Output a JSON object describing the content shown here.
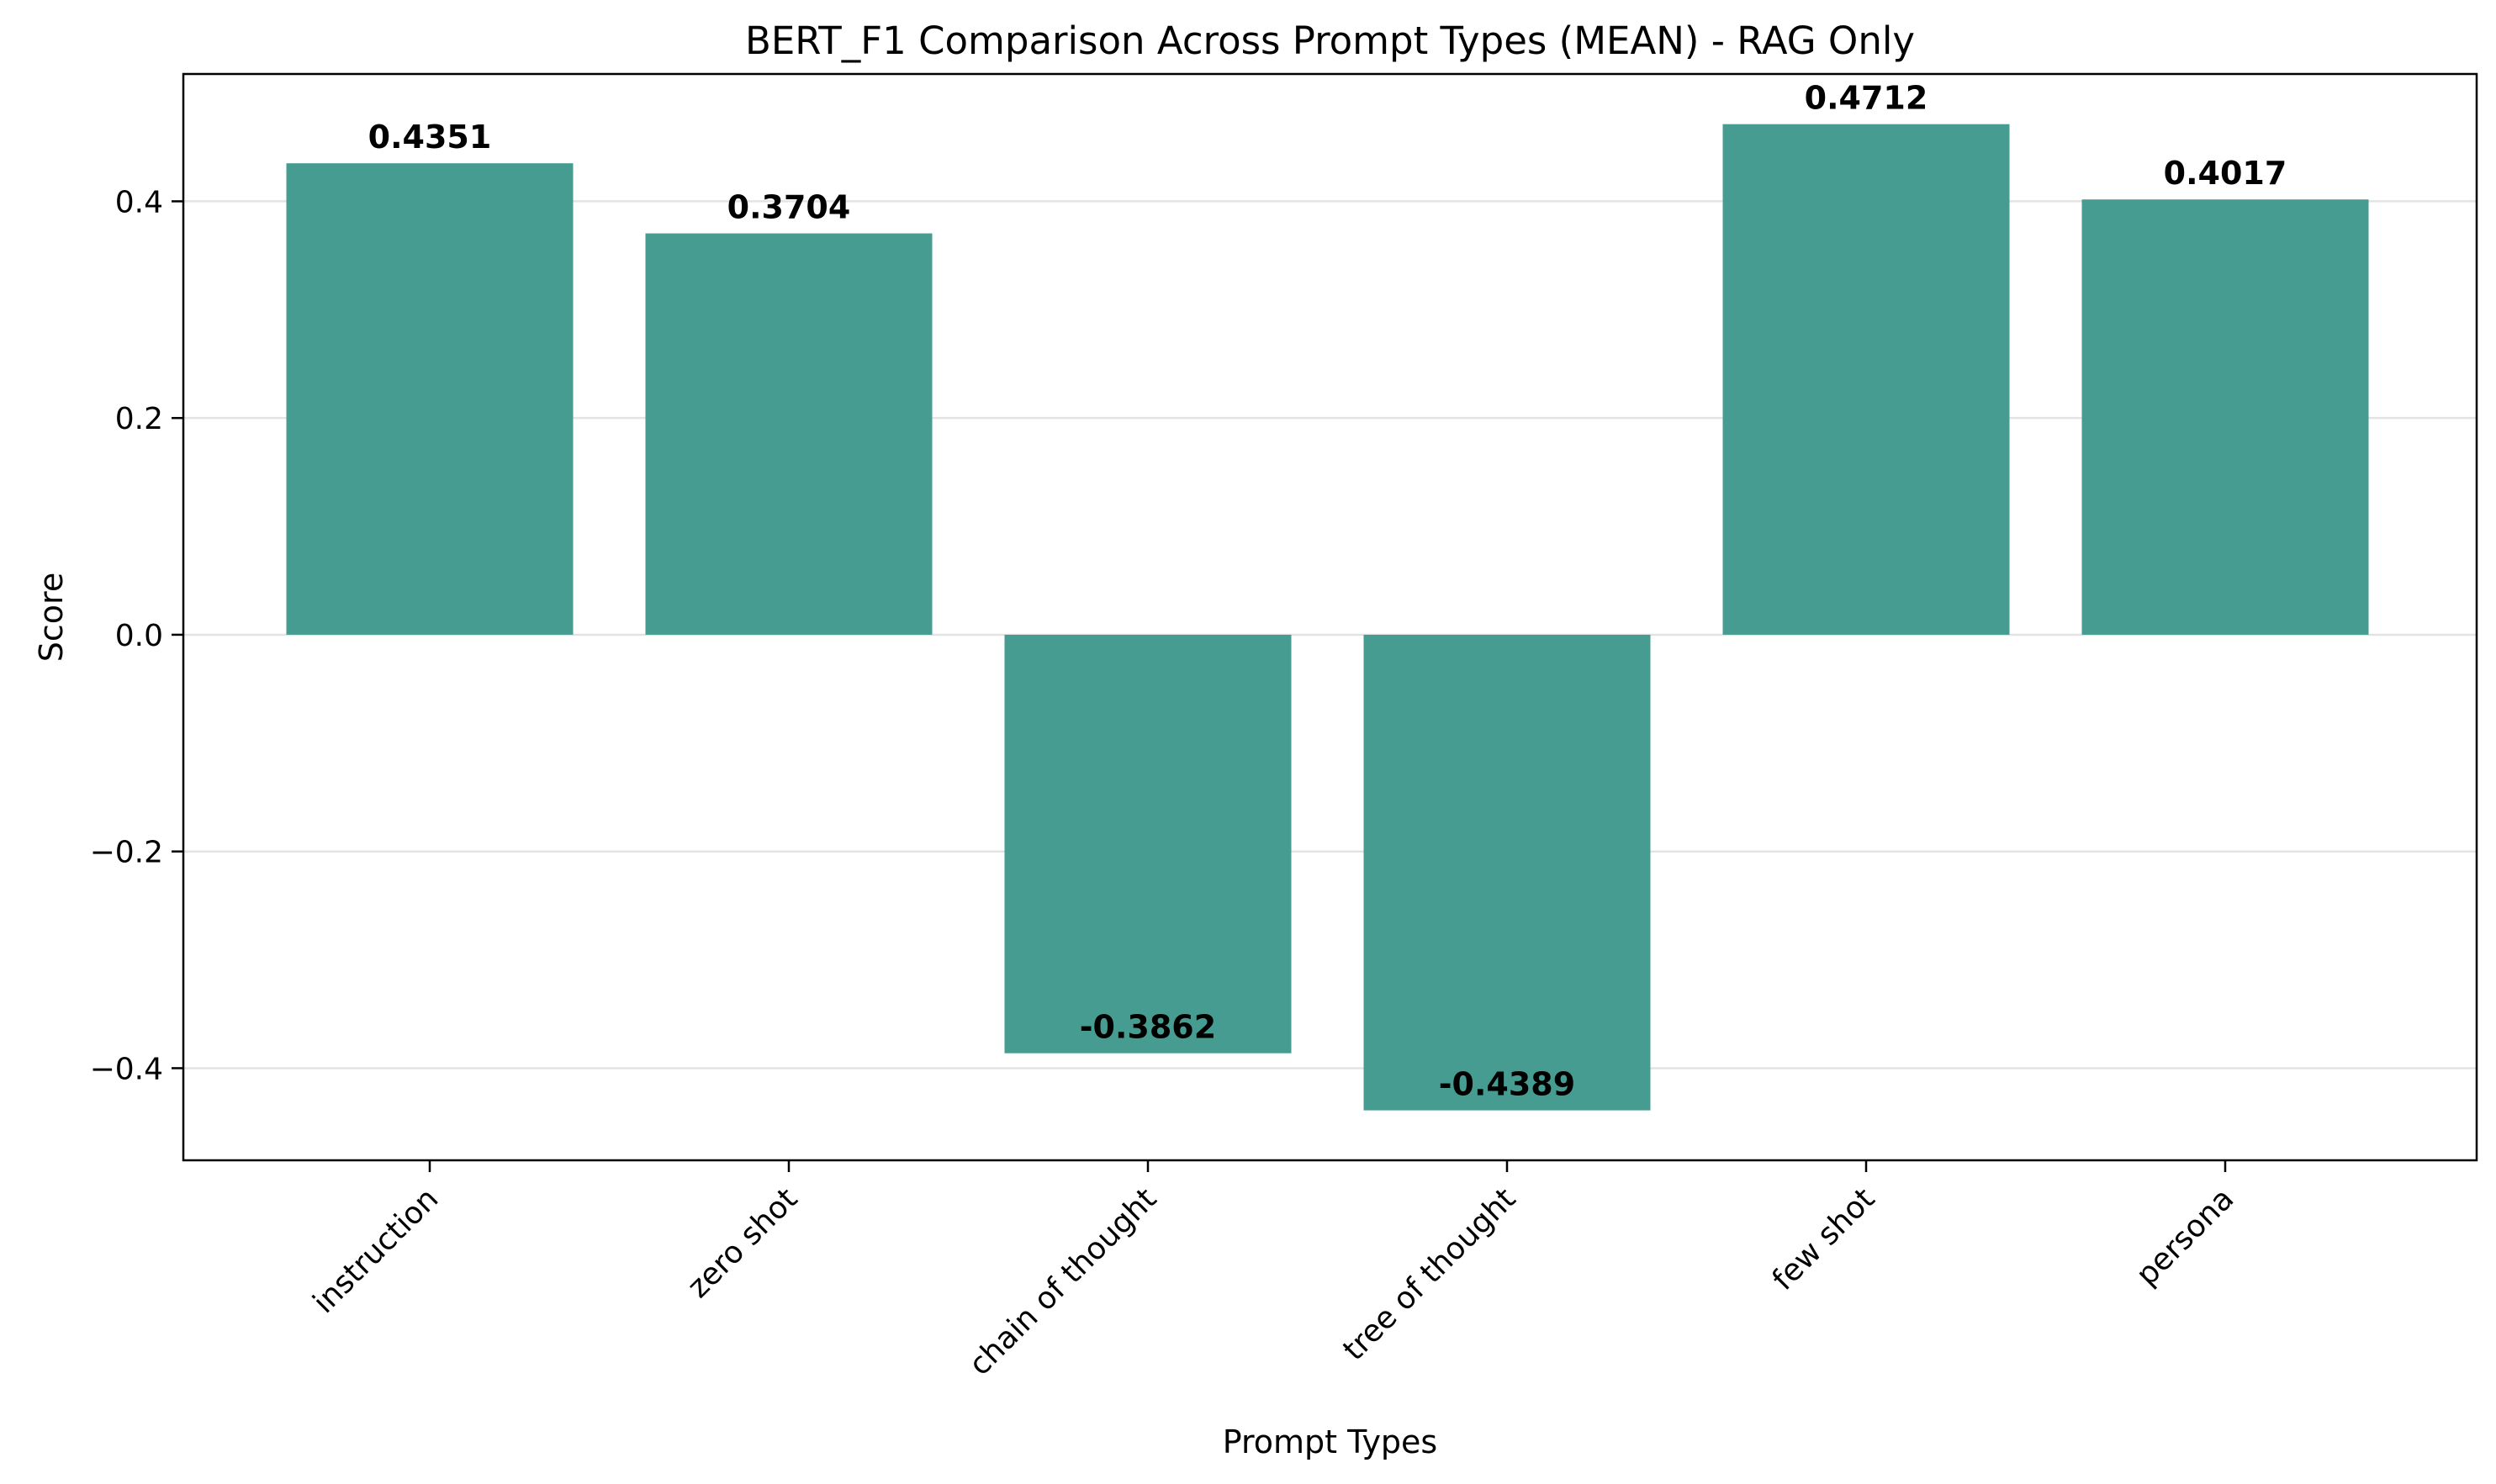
{
  "chart_data": {
    "type": "bar",
    "title": "BERT_F1 Comparison Across Prompt Types (MEAN) - RAG Only",
    "xlabel": "Prompt Types",
    "ylabel": "Score",
    "categories": [
      "instruction",
      "zero shot",
      "chain of thought",
      "tree of thought",
      "few shot",
      "persona"
    ],
    "values": [
      0.4351,
      0.3704,
      -0.3862,
      -0.4389,
      0.4712,
      0.4017
    ],
    "value_labels": [
      "0.4351",
      "0.3704",
      "-0.3862",
      "-0.4389",
      "0.4712",
      "0.4017"
    ],
    "ylim": [
      -0.485,
      0.5175
    ],
    "yticks": [
      -0.4,
      -0.2,
      0.0,
      0.2,
      0.4
    ],
    "ytick_labels": [
      "−0.4",
      "−0.2",
      "0.0",
      "0.2",
      "0.4"
    ],
    "grid": "y",
    "bar_color": "#479c91",
    "legend": "none"
  }
}
